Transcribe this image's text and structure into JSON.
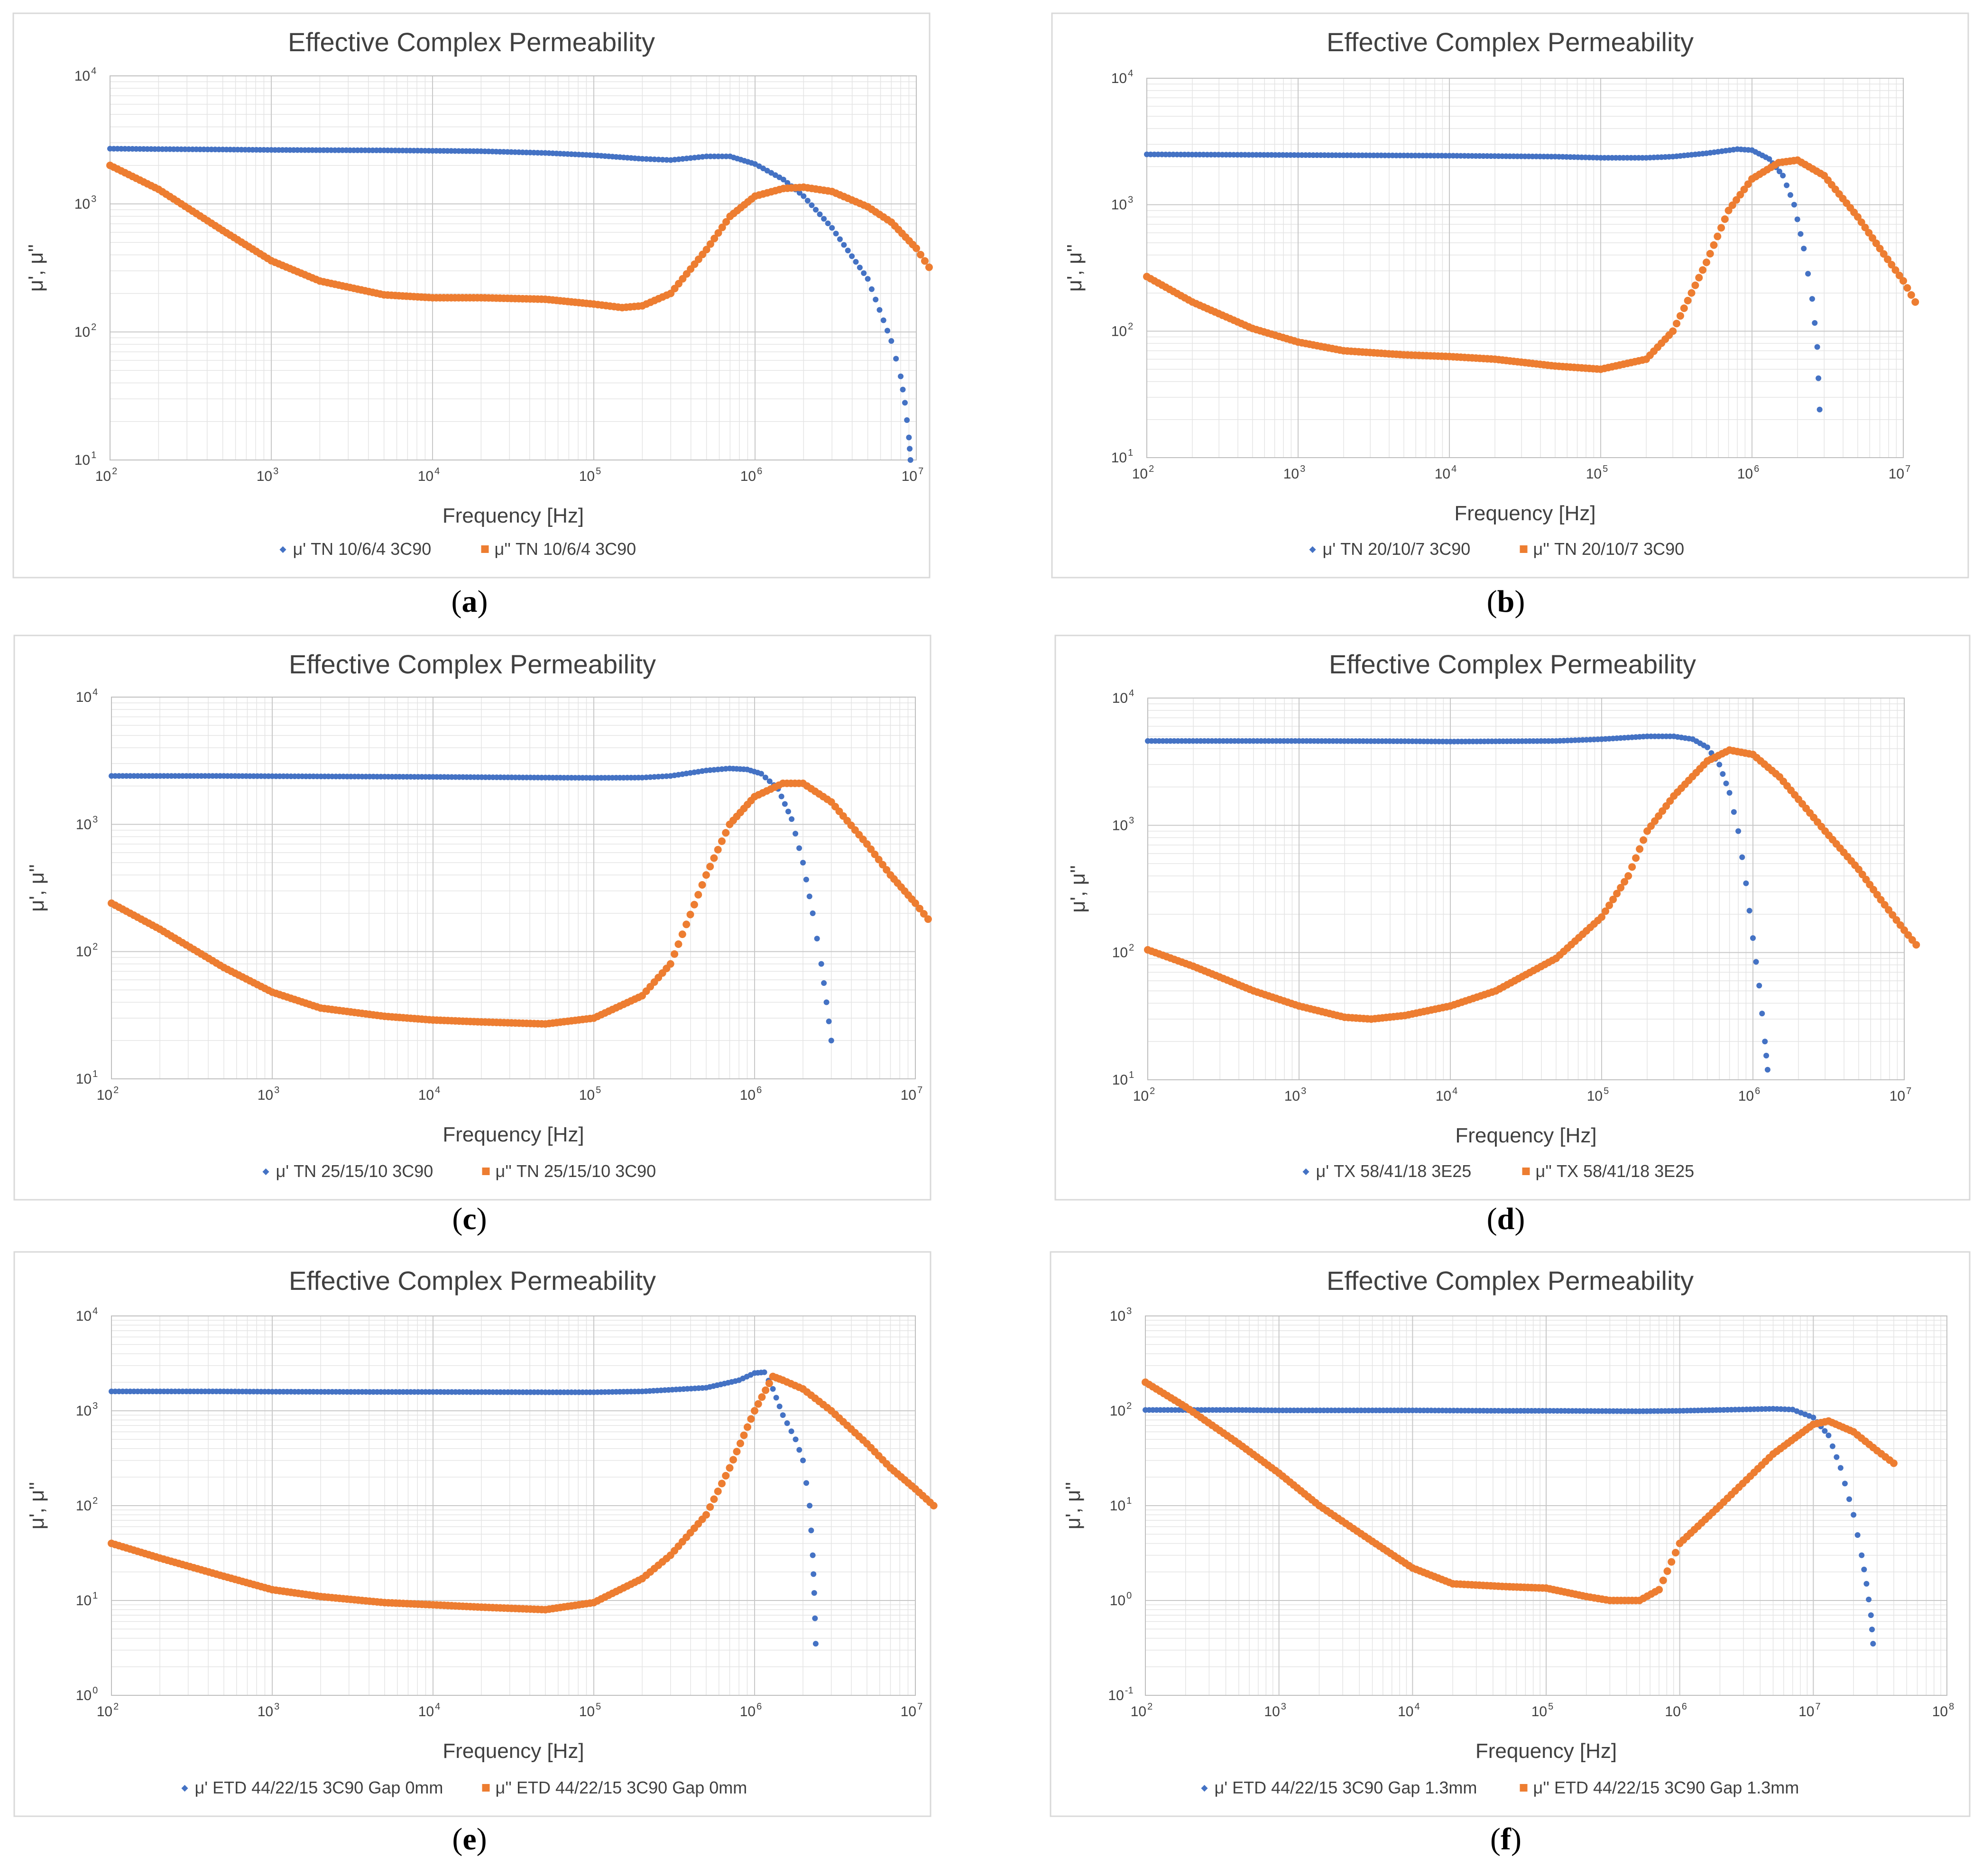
{
  "colors": {
    "mu_prime": "#4472C4",
    "mu_double_prime": "#ED7D31"
  },
  "chart_data": [
    {
      "type": "scatter",
      "panel": "a",
      "caption": "(a)",
      "title": "Effective Complex Permeability",
      "xlabel": "Frequency [Hz]",
      "ylabel": "μ', μ''",
      "x_scale": "log",
      "y_scale": "log",
      "xlim": [
        100,
        10000000
      ],
      "ylim": [
        10,
        10000
      ],
      "grid": true,
      "legend": "bottom",
      "series": [
        {
          "name": "μ' TN 10/6/4 3C90",
          "color": "#4472C4",
          "x": [
            100,
            200,
            500,
            1000,
            2000,
            5000,
            10000,
            20000,
            50000,
            100000,
            200000,
            300000,
            500000,
            700000,
            1000000,
            1500000,
            2000000,
            3000000,
            5000000,
            7000000,
            8000000,
            8500000,
            9000000,
            9200000
          ],
          "y": [
            2700,
            2680,
            2660,
            2640,
            2630,
            2620,
            2600,
            2580,
            2500,
            2400,
            2250,
            2200,
            2350,
            2350,
            2050,
            1550,
            1150,
            650,
            260,
            85,
            45,
            28,
            15,
            10
          ]
        },
        {
          "name": "μ'' TN 10/6/4 3C90",
          "color": "#ED7D31",
          "x": [
            100,
            200,
            500,
            1000,
            2000,
            5000,
            10000,
            20000,
            50000,
            100000,
            150000,
            200000,
            300000,
            500000,
            700000,
            1000000,
            1500000,
            2000000,
            3000000,
            5000000,
            7000000,
            10000000,
            12000000
          ],
          "y": [
            2000,
            1300,
            620,
            360,
            250,
            195,
            185,
            185,
            180,
            165,
            155,
            160,
            200,
            440,
            800,
            1150,
            1320,
            1350,
            1250,
            950,
            720,
            450,
            320
          ]
        }
      ]
    },
    {
      "type": "scatter",
      "panel": "b",
      "caption": "(b)",
      "title": "Effective Complex Permeability",
      "xlabel": "Frequency [Hz]",
      "ylabel": "μ', μ''",
      "x_scale": "log",
      "y_scale": "log",
      "xlim": [
        100,
        10000000
      ],
      "ylim": [
        10,
        10000
      ],
      "grid": true,
      "legend": "bottom",
      "series": [
        {
          "name": "μ' TN 20/10/7 3C90",
          "color": "#4472C4",
          "x": [
            100,
            500,
            1000,
            5000,
            10000,
            50000,
            100000,
            200000,
            300000,
            500000,
            800000,
            1000000,
            1300000,
            1600000,
            1900000,
            2200000,
            2500000,
            2700000,
            2800000
          ],
          "y": [
            2500,
            2480,
            2470,
            2450,
            2440,
            2400,
            2350,
            2350,
            2400,
            2550,
            2750,
            2700,
            2300,
            1700,
            1000,
            450,
            180,
            75,
            24
          ]
        },
        {
          "name": "μ'' TN 20/10/7 3C90",
          "color": "#ED7D31",
          "x": [
            100,
            200,
            500,
            1000,
            2000,
            5000,
            10000,
            20000,
            50000,
            100000,
            200000,
            300000,
            500000,
            700000,
            1000000,
            1500000,
            2000000,
            3000000,
            5000000,
            7000000,
            10000000,
            12000000
          ],
          "y": [
            270,
            170,
            105,
            82,
            70,
            65,
            63,
            60,
            53,
            50,
            60,
            100,
            350,
            900,
            1600,
            2150,
            2250,
            1700,
            800,
            450,
            250,
            170
          ]
        }
      ]
    },
    {
      "type": "scatter",
      "panel": "c",
      "caption": "(c)",
      "title": "Effective Complex Permeability",
      "xlabel": "Frequency [Hz]",
      "ylabel": "μ', μ''",
      "x_scale": "log",
      "y_scale": "log",
      "xlim": [
        100,
        10000000
      ],
      "ylim": [
        10,
        10000
      ],
      "grid": true,
      "legend": "bottom",
      "series": [
        {
          "name": "μ' TN 25/15/10 3C90",
          "color": "#4472C4",
          "x": [
            100,
            500,
            1000,
            5000,
            10000,
            50000,
            100000,
            200000,
            300000,
            500000,
            700000,
            900000,
            1100000,
            1400000,
            1700000,
            2000000,
            2300000,
            2600000,
            2800000,
            3000000
          ],
          "y": [
            2400,
            2400,
            2390,
            2370,
            2360,
            2330,
            2320,
            2330,
            2400,
            2650,
            2750,
            2700,
            2500,
            1900,
            1100,
            500,
            200,
            80,
            40,
            20
          ]
        },
        {
          "name": "μ'' TN 25/15/10 3C90",
          "color": "#ED7D31",
          "x": [
            100,
            200,
            500,
            1000,
            2000,
            5000,
            10000,
            20000,
            50000,
            100000,
            200000,
            300000,
            500000,
            700000,
            1000000,
            1500000,
            2000000,
            3000000,
            5000000,
            7000000,
            10000000,
            12000000
          ],
          "y": [
            240,
            150,
            75,
            48,
            36,
            31,
            29,
            28,
            27,
            30,
            45,
            80,
            400,
            1000,
            1650,
            2100,
            2100,
            1500,
            700,
            400,
            240,
            180
          ]
        }
      ]
    },
    {
      "type": "scatter",
      "panel": "d",
      "caption": "(d)",
      "title": "Effective Complex Permeability",
      "xlabel": "Frequency [Hz]",
      "ylabel": "μ', μ''",
      "x_scale": "log",
      "y_scale": "log",
      "xlim": [
        100,
        10000000
      ],
      "ylim": [
        10,
        10000
      ],
      "grid": true,
      "legend": "bottom",
      "series": [
        {
          "name": "μ' TX 58/41/18 3E25",
          "color": "#4472C4",
          "x": [
            100,
            500,
            1000,
            5000,
            10000,
            50000,
            100000,
            200000,
            300000,
            400000,
            500000,
            600000,
            700000,
            800000,
            900000,
            1000000,
            1100000,
            1200000,
            1250000
          ],
          "y": [
            4600,
            4600,
            4600,
            4580,
            4550,
            4600,
            4750,
            5000,
            5000,
            4750,
            4100,
            3000,
            1800,
            900,
            350,
            130,
            55,
            20,
            12
          ]
        },
        {
          "name": "μ'' TX 58/41/18 3E25",
          "color": "#ED7D31",
          "x": [
            100,
            200,
            500,
            1000,
            2000,
            3000,
            5000,
            10000,
            20000,
            50000,
            100000,
            150000,
            200000,
            300000,
            500000,
            700000,
            1000000,
            1500000,
            2000000,
            3000000,
            5000000,
            7000000,
            10000000,
            12000000
          ],
          "y": [
            105,
            78,
            50,
            38,
            31,
            30,
            32,
            38,
            50,
            90,
            190,
            400,
            900,
            1700,
            3200,
            3900,
            3600,
            2400,
            1600,
            900,
            450,
            260,
            150,
            115
          ]
        }
      ]
    },
    {
      "type": "scatter",
      "panel": "e",
      "caption": "(e)",
      "title": "Effective Complex Permeability",
      "xlabel": "Frequency [Hz]",
      "ylabel": "μ', μ''",
      "x_scale": "log",
      "y_scale": "log",
      "xlim": [
        100,
        10000000
      ],
      "ylim": [
        1,
        10000
      ],
      "grid": true,
      "legend": "bottom",
      "series": [
        {
          "name": "μ' ETD 44/22/15 3C90 Gap 0mm",
          "color": "#4472C4",
          "x": [
            100,
            500,
            1000,
            5000,
            10000,
            50000,
            100000,
            200000,
            500000,
            800000,
            1000000,
            1150000,
            1300000,
            1500000,
            1800000,
            2000000,
            2200000,
            2300000,
            2350000,
            2400000
          ],
          "y": [
            1600,
            1600,
            1590,
            1580,
            1580,
            1570,
            1570,
            1600,
            1750,
            2100,
            2500,
            2550,
            1700,
            900,
            500,
            300,
            100,
            30,
            12,
            3.5
          ]
        },
        {
          "name": "μ'' ETD 44/22/15 3C90 Gap 0mm",
          "color": "#ED7D31",
          "x": [
            100,
            200,
            500,
            1000,
            2000,
            5000,
            10000,
            20000,
            50000,
            100000,
            200000,
            300000,
            500000,
            700000,
            1000000,
            1300000,
            1500000,
            2000000,
            3000000,
            5000000,
            7000000,
            10000000,
            13000000
          ],
          "y": [
            40,
            28,
            18,
            13,
            11,
            9.5,
            9,
            8.5,
            8,
            9.5,
            17,
            30,
            80,
            250,
            1000,
            2300,
            2100,
            1700,
            1000,
            450,
            250,
            150,
            100
          ]
        }
      ]
    },
    {
      "type": "scatter",
      "panel": "f",
      "caption": "(f)",
      "title": "Effective Complex Permeability",
      "xlabel": "Frequency [Hz]",
      "ylabel": "μ', μ''",
      "x_scale": "log",
      "y_scale": "log",
      "xlim": [
        100,
        100000000
      ],
      "ylim": [
        0.1,
        1000
      ],
      "grid": true,
      "legend": "bottom",
      "series": [
        {
          "name": "μ' ETD 44/22/15 3C90 Gap 1.3mm",
          "color": "#4472C4",
          "x": [
            100,
            500,
            1000,
            5000,
            10000,
            50000,
            100000,
            500000,
            1000000,
            2000000,
            5000000,
            7000000,
            10000000,
            13000000,
            16000000,
            20000000,
            23000000,
            25000000,
            27000000,
            28000000
          ],
          "y": [
            102,
            102,
            101,
            101,
            101,
            100,
            100,
            99,
            100,
            102,
            105,
            103,
            85,
            55,
            25,
            8,
            3,
            1.5,
            0.7,
            0.35
          ]
        },
        {
          "name": "μ'' ETD 44/22/15 3C90 Gap 1.3mm",
          "color": "#ED7D31",
          "x": [
            100,
            200,
            500,
            1000,
            2000,
            5000,
            10000,
            20000,
            50000,
            100000,
            200000,
            300000,
            500000,
            700000,
            1000000,
            2000000,
            5000000,
            10000000,
            13000000,
            20000000,
            30000000,
            40000000
          ],
          "y": [
            200,
            110,
            45,
            22,
            10,
            4.2,
            2.2,
            1.5,
            1.4,
            1.35,
            1.1,
            1.0,
            1.0,
            1.3,
            4,
            10,
            35,
            72,
            78,
            60,
            38,
            28
          ]
        }
      ]
    }
  ]
}
